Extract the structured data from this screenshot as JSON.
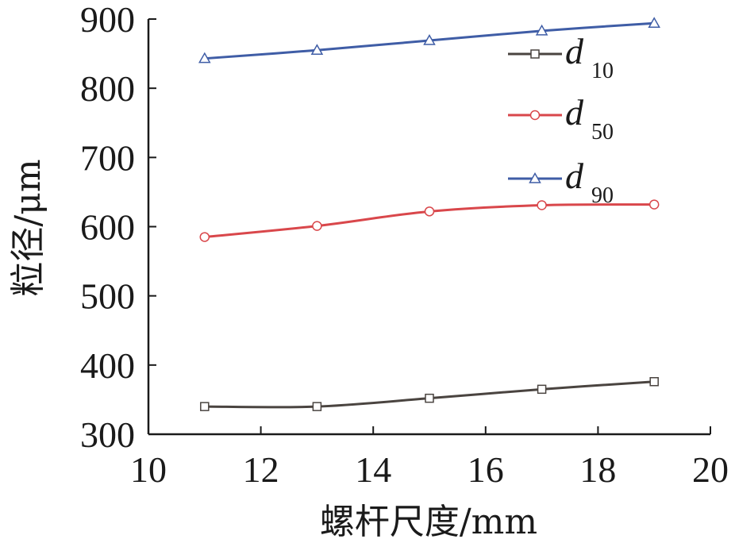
{
  "chart_data": {
    "type": "line",
    "xlabel": "螺杆尺度/mm",
    "ylabel": "粒径/μm",
    "xlim": [
      10,
      20
    ],
    "ylim": [
      300,
      900
    ],
    "x_ticks": [
      "10",
      "12",
      "14",
      "16",
      "18",
      "20"
    ],
    "y_ticks": [
      "300",
      "400",
      "500",
      "600",
      "700",
      "800",
      "900"
    ],
    "x": [
      11,
      13,
      15,
      17,
      19
    ],
    "grid": false,
    "legend_position": "top-right",
    "series": [
      {
        "name": "d",
        "subscript": "10",
        "marker": "square",
        "color": "#4a4440",
        "values": [
          340,
          340,
          352,
          365,
          376
        ]
      },
      {
        "name": "d",
        "subscript": "50",
        "marker": "circle",
        "color": "#d9474b",
        "values": [
          585,
          601,
          622,
          631,
          632
        ]
      },
      {
        "name": "d",
        "subscript": "90",
        "marker": "triangle",
        "color": "#3f5da6",
        "values": [
          843,
          855,
          869,
          883,
          894
        ]
      }
    ]
  }
}
